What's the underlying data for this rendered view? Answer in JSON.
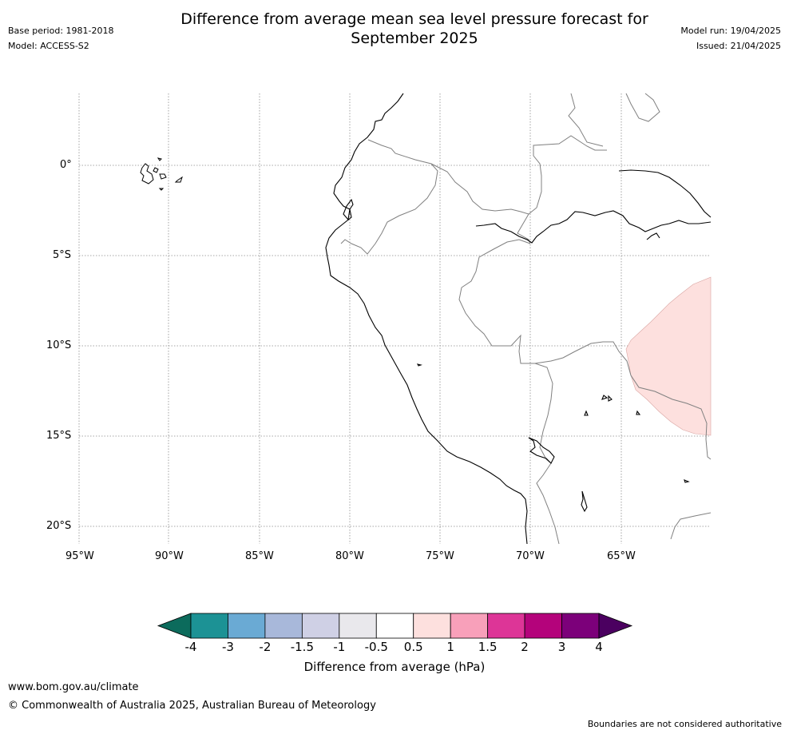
{
  "header": {
    "title_line1": "Difference from average mean sea level pressure forecast for",
    "title_line2": "September 2025",
    "base_period": "Base period: 1981-2018",
    "model": "Model: ACCESS-S2",
    "model_run": "Model run: 19/04/2025",
    "issued": "Issued: 21/04/2025"
  },
  "map": {
    "lat_labels": [
      "0°",
      "5°S",
      "10°S",
      "15°S",
      "20°S"
    ],
    "lon_labels": [
      "95°W",
      "90°W",
      "85°W",
      "80°W",
      "75°W",
      "70°W",
      "65°W"
    ],
    "anomaly_region_color": "#fde0de",
    "coastline_color": "#000000",
    "border_color": "#808080"
  },
  "colorbar": {
    "tick_labels": [
      "-4",
      "-3",
      "-2",
      "-1.5",
      "-1",
      "-0.5",
      "0.5",
      "1",
      "1.5",
      "2",
      "3",
      "4"
    ],
    "colors": [
      "#0c6b5c",
      "#1c9295",
      "#6aaad4",
      "#a8b8da",
      "#cfd0e5",
      "#e9e8ec",
      "#ffffff",
      "#fde0de",
      "#f8a0ba",
      "#dd3597",
      "#b4037b",
      "#7c007a",
      "#4b0060"
    ],
    "label": "Difference from average (hPa)"
  },
  "footer": {
    "website": "www.bom.gov.au/climate",
    "copyright": "© Commonwealth of Australia 2025, Australian Bureau of Meteorology",
    "disclaimer": "Boundaries are not considered authoritative"
  }
}
